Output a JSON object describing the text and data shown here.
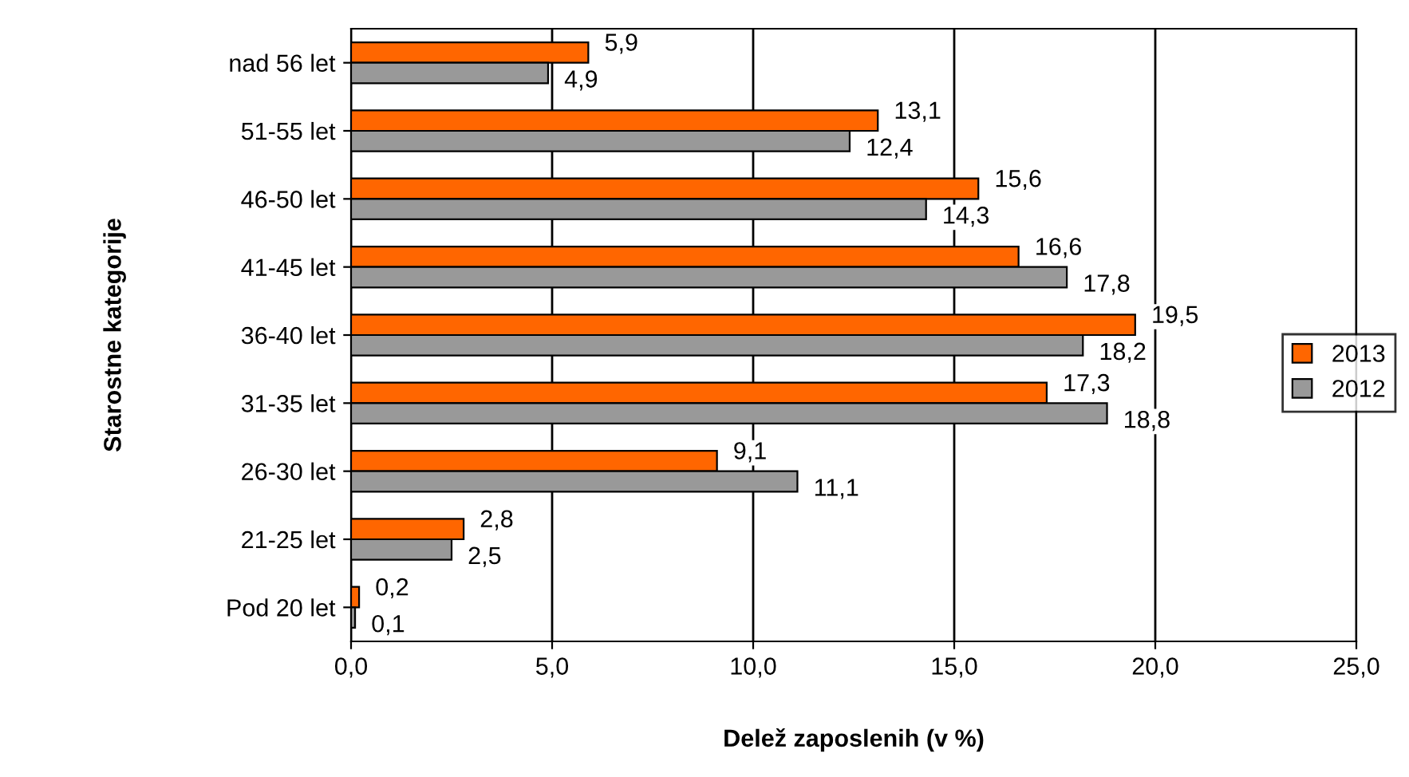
{
  "chart_data": {
    "type": "bar",
    "orientation": "horizontal",
    "xlabel": "Delež zaposlenih (v %)",
    "ylabel": "Starostne kategorije",
    "categories": [
      "nad 56 let",
      "51-55 let",
      "46-50 let",
      "41-45 let",
      "36-40 let",
      "31-35 let",
      "26-30 let",
      "21-25 let",
      "Pod 20 let"
    ],
    "series": [
      {
        "name": "2013",
        "color": "#ff6600",
        "values": [
          5.9,
          13.1,
          15.6,
          16.6,
          19.5,
          17.3,
          9.1,
          2.8,
          0.2
        ],
        "value_labels": [
          "5,9",
          "13,1",
          "15,6",
          "16,6",
          "19,5",
          "17,3",
          "9,1",
          "2,8",
          "0,2"
        ]
      },
      {
        "name": "2012",
        "color": "#999999",
        "values": [
          4.9,
          12.4,
          14.3,
          17.8,
          18.2,
          18.8,
          11.1,
          2.5,
          0.1
        ],
        "value_labels": [
          "4,9",
          "12,4",
          "14,3",
          "17,8",
          "18,2",
          "18,8",
          "11,1",
          "2,5",
          "0,1"
        ]
      }
    ],
    "xlim": [
      0,
      25
    ],
    "xticks": [
      {
        "value": 0,
        "label": "0,0"
      },
      {
        "value": 5,
        "label": "5,0"
      },
      {
        "value": 10,
        "label": "10,0"
      },
      {
        "value": 15,
        "label": "15,0"
      },
      {
        "value": 20,
        "label": "20,0"
      },
      {
        "value": 25,
        "label": "25,0"
      }
    ],
    "grid": "x",
    "legend": "right"
  }
}
